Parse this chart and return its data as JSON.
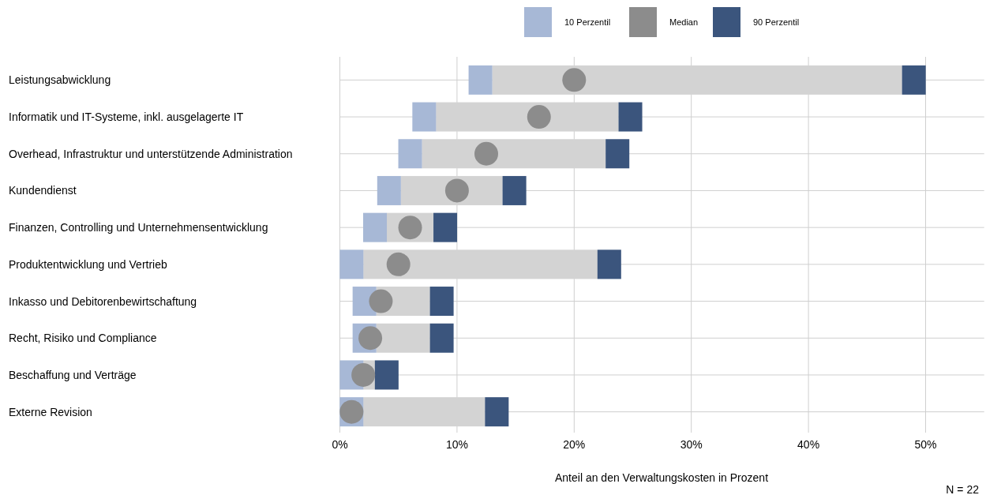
{
  "chart_data": {
    "type": "bar",
    "orientation": "horizontal",
    "xlabel": "Anteil an den Verwaltungskosten in Prozent",
    "annotations": [
      "N = 22"
    ],
    "categories": [
      "Leistungsabwicklung",
      "Informatik und IT-Systeme, inkl. ausgelagerte IT",
      "Overhead, Infrastruktur und unterstützende Administration",
      "Kundendienst",
      "Finanzen, Controlling und Unternehmensentwicklung",
      "Produktentwicklung und Vertrieb",
      "Inkasso und Debitorenbewirtschaftung",
      "Recht, Risiko und Compliance",
      "Beschaffung und Verträge",
      "Externe Revision"
    ],
    "series": [
      {
        "color": "#d3d3d3",
        "base": [
          13,
          8.2,
          7,
          5.2,
          4,
          2,
          3.1,
          3.1,
          2,
          2
        ],
        "values": [
          35,
          15.6,
          15.7,
          8.7,
          4,
          20,
          4.6,
          4.6,
          1,
          10.4
        ]
      },
      {
        "type": "scatter",
        "marker": "square",
        "name": "10 Perzentil",
        "color": "#a7b8d6",
        "values": [
          12,
          7.2,
          6,
          4.2,
          3,
          1,
          2.1,
          2.1,
          1,
          1
        ]
      },
      {
        "type": "scatter",
        "marker": "circle",
        "name": "Median",
        "color": "#8c8c8c",
        "values": [
          20,
          17,
          12.5,
          10,
          6,
          5,
          3.5,
          2.6,
          2,
          1
        ]
      },
      {
        "type": "scatter",
        "marker": "square",
        "name": "90 Perzentil",
        "color": "#3b557d",
        "values": [
          49,
          24.8,
          23.7,
          14.9,
          9,
          23,
          8.7,
          8.7,
          4,
          13.4
        ]
      }
    ],
    "xlim": [
      0,
      55
    ],
    "xticks": [
      {
        "value": 0,
        "label": "0%"
      },
      {
        "value": 10,
        "label": "10%"
      },
      {
        "value": 20,
        "label": "20%"
      },
      {
        "value": 30,
        "label": "30%"
      },
      {
        "value": 40,
        "label": "40%"
      },
      {
        "value": 50,
        "label": "50%"
      }
    ],
    "grid": true,
    "legend": "top"
  }
}
